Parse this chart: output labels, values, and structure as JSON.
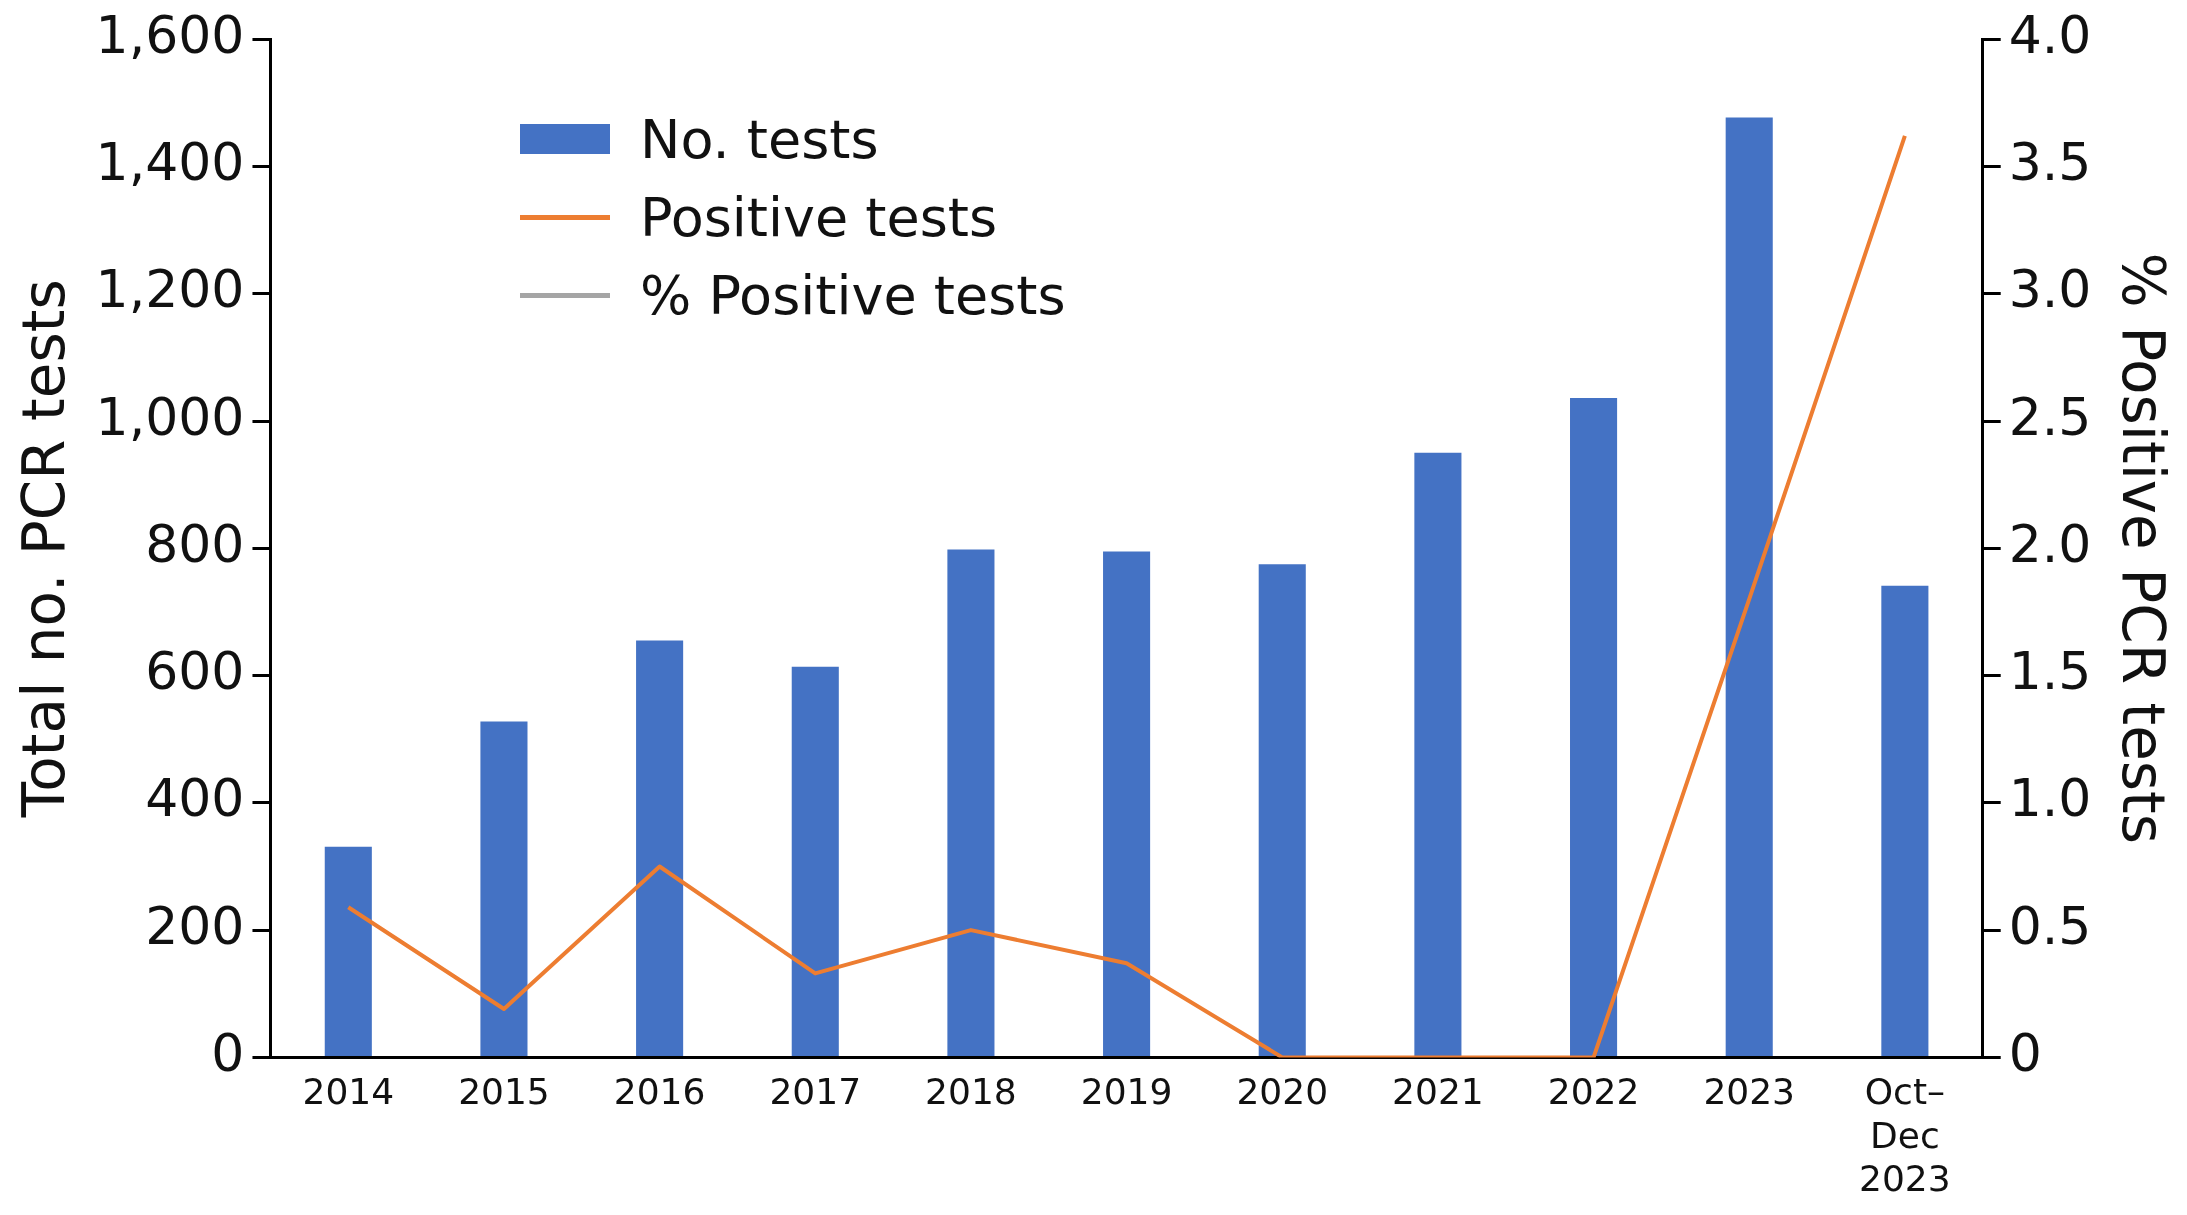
{
  "chart_data": {
    "type": "bar",
    "ylabel": "Total no. PCR tests",
    "y2label": "% Positive PCR tests",
    "categories": [
      "2014",
      "2015",
      "2016",
      "2017",
      "2018",
      "2019",
      "2020",
      "2021",
      "2022",
      "2023",
      "Oct–Dec 2023"
    ],
    "series": [
      {
        "name": "No. tests",
        "color": "#4472c4",
        "values": [
          331,
          528,
          655,
          614,
          798,
          795,
          775,
          950,
          1036,
          1477,
          741
        ]
      },
      {
        "name": "Positive tests",
        "type": "line",
        "axis": "y2",
        "color": "#ed7d31",
        "values": [
          0.59,
          0.19,
          0.75,
          0.33,
          0.5,
          0.37,
          0,
          0,
          0,
          1.8,
          3.62
        ]
      },
      {
        "name": "% Positive tests",
        "type": "line",
        "axis": "y2",
        "color": "#a5a5a5",
        "values": [
          null,
          null,
          null,
          null,
          null,
          null,
          null,
          null,
          null,
          null,
          null
        ]
      }
    ],
    "ylim": [
      0,
      1600
    ],
    "yticks": [
      0,
      {
        "value": 200,
        "label": "200"
      },
      {
        "value": 400,
        "label": "400"
      },
      {
        "value": 600,
        "label": "600"
      },
      {
        "value": 800,
        "label": "800"
      },
      {
        "value": 1000,
        "label": "1,000"
      },
      {
        "value": 1200,
        "label": "1,200"
      },
      {
        "value": 1400,
        "label": "1,400"
      },
      {
        "value": 1600,
        "label": "1,600"
      }
    ],
    "y2lim": [
      0,
      4
    ],
    "y2ticks": [
      0,
      0.5,
      {
        "value": 1,
        "label": "1.0"
      },
      1.5,
      {
        "value": 2,
        "label": "2.0"
      },
      2.5,
      {
        "value": 3,
        "label": "3.0"
      },
      3.5,
      {
        "value": 4,
        "label": "4.0"
      }
    ],
    "grid": false,
    "legend": "top left",
    "marker": "none"
  }
}
